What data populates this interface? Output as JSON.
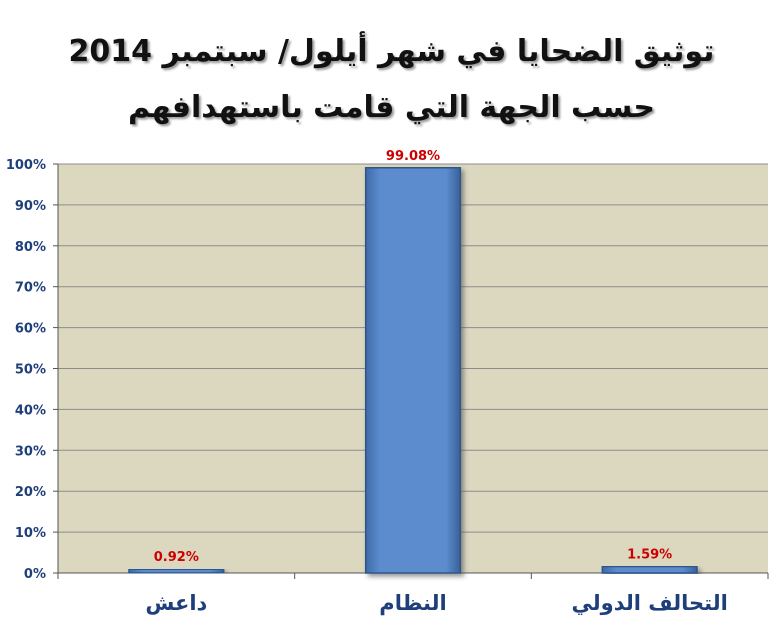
{
  "chart_data": {
    "type": "bar",
    "title": "توثيق الضحايا في شهر أيلول/ سبتمبر 2014",
    "subtitle": "حسب الجهة التي قامت باستهدافهم",
    "categories": [
      "داعش",
      "النظام",
      "التحالف الدولي"
    ],
    "values": [
      0.92,
      99.08,
      1.59
    ],
    "data_labels": [
      "0.92%",
      "99.08%",
      "1.59%"
    ],
    "ylim": [
      0,
      100
    ],
    "yticks": [
      "0%",
      "10%",
      "20%",
      "30%",
      "40%",
      "50%",
      "60%",
      "70%",
      "80%",
      "90%",
      "100%"
    ],
    "grid": true,
    "legend": "none",
    "colors": {
      "plot_bg": "#dcd8c0",
      "bar_fill": "#5b8ccd",
      "bar_stroke": "#2f5689",
      "data_label": "#cc0000",
      "category_label": "#1f3f7a",
      "tick_label": "#1f3f7a"
    }
  }
}
